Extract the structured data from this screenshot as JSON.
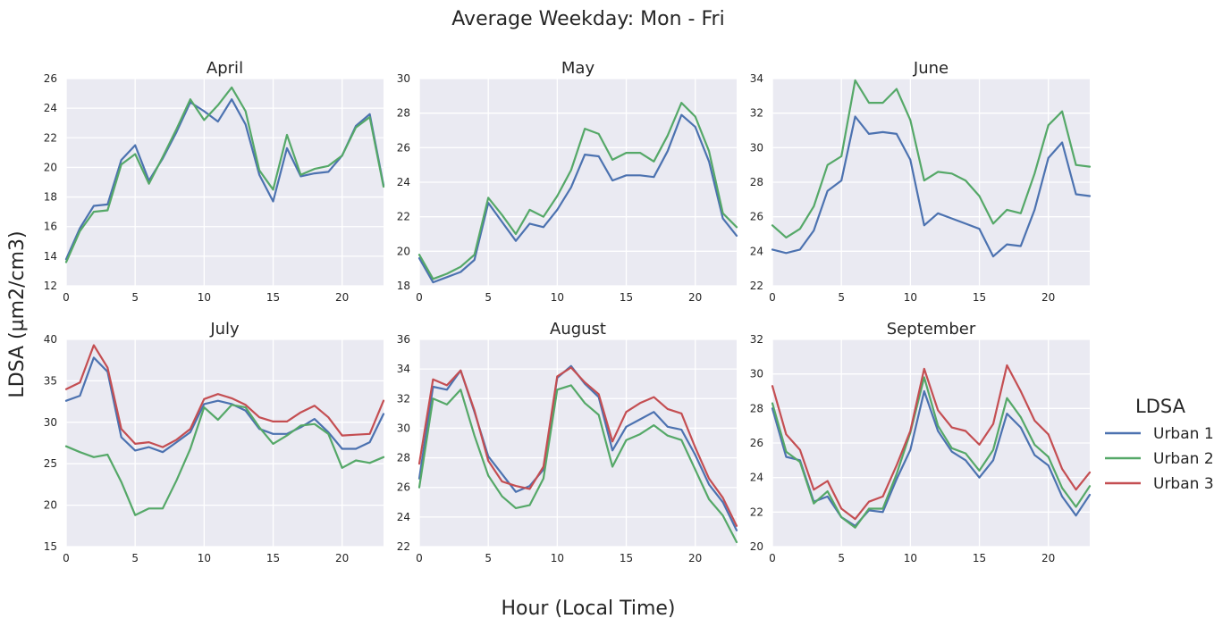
{
  "colors": {
    "panel_bg": "#EAEAF2",
    "grid": "#FFFFFF",
    "text": "#262626",
    "Urban 1": "#4C72B0",
    "Urban 2": "#55A868",
    "Urban 3": "#C44E52"
  },
  "figure": {
    "title": "Average Weekday: Mon - Fri",
    "xlabel": "Hour (Local Time)",
    "ylabel": "LDSA (µm2/cm3)"
  },
  "legend": {
    "title": "LDSA",
    "placement": "right",
    "entries": [
      "Urban 1",
      "Urban 2",
      "Urban 3"
    ]
  },
  "chart_data": [
    {
      "type": "line",
      "title": "April",
      "xlim": [
        0,
        23
      ],
      "ylim": [
        12,
        26
      ],
      "xticks": [
        0,
        5,
        10,
        15,
        20
      ],
      "yticks": [
        12,
        14,
        16,
        18,
        20,
        22,
        24,
        26
      ],
      "x": [
        0,
        1,
        2,
        3,
        4,
        5,
        6,
        7,
        8,
        9,
        10,
        11,
        12,
        13,
        14,
        15,
        16,
        17,
        18,
        19,
        20,
        21,
        22,
        23
      ],
      "series": [
        {
          "name": "Urban 1",
          "values": [
            13.8,
            15.9,
            17.4,
            17.5,
            20.5,
            21.5,
            19.1,
            20.6,
            22.4,
            24.4,
            23.8,
            23.1,
            24.6,
            22.9,
            19.5,
            17.7,
            21.3,
            19.4,
            19.6,
            19.7,
            20.8,
            22.8,
            23.6,
            18.8
          ]
        },
        {
          "name": "Urban 2",
          "values": [
            13.6,
            15.7,
            17.0,
            17.1,
            20.2,
            20.9,
            18.9,
            20.7,
            22.6,
            24.6,
            23.2,
            24.2,
            25.4,
            23.8,
            19.8,
            18.5,
            22.2,
            19.5,
            19.9,
            20.1,
            20.8,
            22.7,
            23.4,
            18.7
          ]
        }
      ]
    },
    {
      "type": "line",
      "title": "May",
      "xlim": [
        0,
        23
      ],
      "ylim": [
        18,
        30
      ],
      "xticks": [
        0,
        5,
        10,
        15,
        20
      ],
      "yticks": [
        18,
        20,
        22,
        24,
        26,
        28,
        30
      ],
      "x": [
        0,
        1,
        2,
        3,
        4,
        5,
        6,
        7,
        8,
        9,
        10,
        11,
        12,
        13,
        14,
        15,
        16,
        17,
        18,
        19,
        20,
        21,
        22,
        23
      ],
      "series": [
        {
          "name": "Urban 1",
          "values": [
            19.6,
            18.2,
            18.5,
            18.8,
            19.5,
            22.8,
            21.7,
            20.6,
            21.6,
            21.4,
            22.4,
            23.7,
            25.6,
            25.5,
            24.1,
            24.4,
            24.4,
            24.3,
            25.8,
            27.9,
            27.2,
            25.2,
            21.9,
            20.9
          ]
        },
        {
          "name": "Urban 2",
          "values": [
            19.8,
            18.4,
            18.7,
            19.1,
            19.8,
            23.1,
            22.1,
            21.0,
            22.4,
            22.0,
            23.2,
            24.7,
            27.1,
            26.8,
            25.3,
            25.7,
            25.7,
            25.2,
            26.7,
            28.6,
            27.8,
            25.8,
            22.2,
            21.4
          ]
        }
      ]
    },
    {
      "type": "line",
      "title": "June",
      "xlim": [
        0,
        23
      ],
      "ylim": [
        22,
        34
      ],
      "xticks": [
        0,
        5,
        10,
        15,
        20
      ],
      "yticks": [
        22,
        24,
        26,
        28,
        30,
        32,
        34
      ],
      "x": [
        0,
        1,
        2,
        3,
        4,
        5,
        6,
        7,
        8,
        9,
        10,
        11,
        12,
        13,
        14,
        15,
        16,
        17,
        18,
        19,
        20,
        21,
        22,
        23
      ],
      "series": [
        {
          "name": "Urban 1",
          "values": [
            24.1,
            23.9,
            24.1,
            25.2,
            27.5,
            28.1,
            31.8,
            30.8,
            30.9,
            30.8,
            29.3,
            25.5,
            26.2,
            25.9,
            25.6,
            25.3,
            23.7,
            24.4,
            24.3,
            26.4,
            29.4,
            30.3,
            27.3,
            27.2
          ]
        },
        {
          "name": "Urban 2",
          "values": [
            25.5,
            24.8,
            25.3,
            26.6,
            29.0,
            29.5,
            33.9,
            32.6,
            32.6,
            33.4,
            31.6,
            28.1,
            28.6,
            28.5,
            28.1,
            27.2,
            25.6,
            26.4,
            26.2,
            28.5,
            31.3,
            32.1,
            29.0,
            28.9
          ]
        }
      ]
    },
    {
      "type": "line",
      "title": "July",
      "xlim": [
        0,
        23
      ],
      "ylim": [
        15,
        40
      ],
      "xticks": [
        0,
        5,
        10,
        15,
        20
      ],
      "yticks": [
        15,
        20,
        25,
        30,
        35,
        40
      ],
      "x": [
        0,
        1,
        2,
        3,
        4,
        5,
        6,
        7,
        8,
        9,
        10,
        11,
        12,
        13,
        14,
        15,
        16,
        17,
        18,
        19,
        20,
        21,
        22,
        23
      ],
      "series": [
        {
          "name": "Urban 1",
          "values": [
            32.6,
            33.2,
            37.8,
            36.1,
            28.2,
            26.6,
            27.0,
            26.4,
            27.6,
            28.8,
            32.2,
            32.6,
            32.2,
            31.4,
            29.2,
            28.6,
            28.6,
            29.4,
            30.4,
            28.8,
            26.8,
            26.8,
            27.6,
            31.0
          ]
        },
        {
          "name": "Urban 2",
          "values": [
            27.1,
            26.4,
            25.8,
            26.1,
            22.8,
            18.8,
            19.6,
            19.6,
            23.0,
            26.8,
            31.8,
            30.3,
            32.1,
            31.8,
            29.4,
            27.4,
            28.4,
            29.6,
            29.8,
            28.6,
            24.5,
            25.4,
            25.1,
            25.8
          ]
        },
        {
          "name": "Urban 3",
          "values": [
            34.0,
            34.8,
            39.3,
            36.6,
            29.2,
            27.4,
            27.6,
            27.0,
            27.9,
            29.2,
            32.8,
            33.4,
            32.9,
            32.1,
            30.6,
            30.1,
            30.1,
            31.2,
            32.0,
            30.6,
            28.4,
            28.5,
            28.6,
            32.6
          ]
        }
      ]
    },
    {
      "type": "line",
      "title": "August",
      "xlim": [
        0,
        23
      ],
      "ylim": [
        22,
        36
      ],
      "xticks": [
        0,
        5,
        10,
        15,
        20
      ],
      "yticks": [
        22,
        24,
        26,
        28,
        30,
        32,
        34,
        36
      ],
      "x": [
        0,
        1,
        2,
        3,
        4,
        5,
        6,
        7,
        8,
        9,
        10,
        11,
        12,
        13,
        14,
        15,
        16,
        17,
        18,
        19,
        20,
        21,
        22,
        23
      ],
      "series": [
        {
          "name": "Urban 1",
          "values": [
            26.6,
            32.8,
            32.6,
            33.9,
            31.1,
            28.1,
            26.9,
            25.7,
            26.1,
            27.2,
            33.4,
            34.2,
            33.0,
            32.1,
            28.5,
            30.1,
            30.6,
            31.1,
            30.1,
            29.9,
            28.2,
            26.2,
            25.0,
            23.1
          ]
        },
        {
          "name": "Urban 2",
          "values": [
            26.0,
            32.0,
            31.6,
            32.6,
            29.5,
            26.8,
            25.4,
            24.6,
            24.8,
            26.6,
            32.6,
            32.9,
            31.7,
            30.9,
            27.4,
            29.2,
            29.6,
            30.2,
            29.5,
            29.2,
            27.2,
            25.2,
            24.1,
            22.3
          ]
        },
        {
          "name": "Urban 3",
          "values": [
            27.6,
            33.3,
            32.9,
            33.9,
            31.2,
            27.8,
            26.4,
            26.1,
            25.9,
            27.4,
            33.5,
            34.1,
            33.1,
            32.3,
            29.1,
            31.1,
            31.7,
            32.1,
            31.3,
            31.0,
            28.7,
            26.6,
            25.3,
            23.4
          ]
        }
      ]
    },
    {
      "type": "line",
      "title": "September",
      "xlim": [
        0,
        23
      ],
      "ylim": [
        20,
        32
      ],
      "xticks": [
        0,
        5,
        10,
        15,
        20
      ],
      "yticks": [
        20,
        22,
        24,
        26,
        28,
        30,
        32
      ],
      "x": [
        0,
        1,
        2,
        3,
        4,
        5,
        6,
        7,
        8,
        9,
        10,
        11,
        12,
        13,
        14,
        15,
        16,
        17,
        18,
        19,
        20,
        21,
        22,
        23
      ],
      "series": [
        {
          "name": "Urban 1",
          "values": [
            28.0,
            25.2,
            25.0,
            22.6,
            22.9,
            21.7,
            21.2,
            22.1,
            22.0,
            23.9,
            25.6,
            29.0,
            26.7,
            25.5,
            25.0,
            24.0,
            25.0,
            27.7,
            26.9,
            25.3,
            24.7,
            22.9,
            21.8,
            23.0
          ]
        },
        {
          "name": "Urban 2",
          "values": [
            28.3,
            25.5,
            24.9,
            22.5,
            23.2,
            21.7,
            21.1,
            22.2,
            22.2,
            24.2,
            26.6,
            29.8,
            27.0,
            25.7,
            25.4,
            24.4,
            25.6,
            28.6,
            27.5,
            25.9,
            25.2,
            23.4,
            22.3,
            23.5
          ]
        },
        {
          "name": "Urban 3",
          "values": [
            29.3,
            26.5,
            25.6,
            23.3,
            23.8,
            22.2,
            21.6,
            22.6,
            22.9,
            24.7,
            26.7,
            30.3,
            27.9,
            26.9,
            26.7,
            25.9,
            27.1,
            30.5,
            29.0,
            27.3,
            26.5,
            24.5,
            23.3,
            24.3
          ]
        }
      ]
    }
  ]
}
